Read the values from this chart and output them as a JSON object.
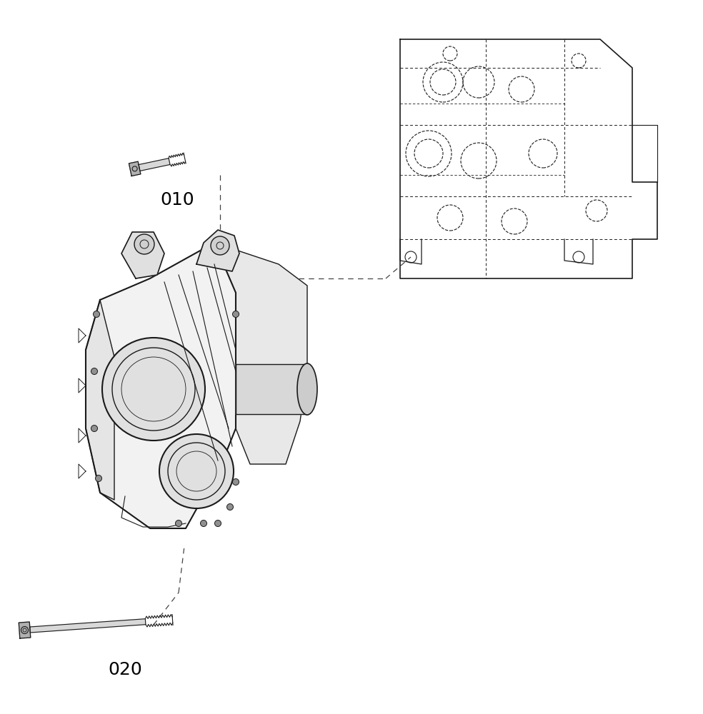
{
  "bg_color": "#ffffff",
  "line_color": "#1a1a1a",
  "label_010": "010",
  "label_020": "020",
  "label_fontsize": 18,
  "figsize": [
    9.84,
    10.0
  ],
  "dpi": 100
}
